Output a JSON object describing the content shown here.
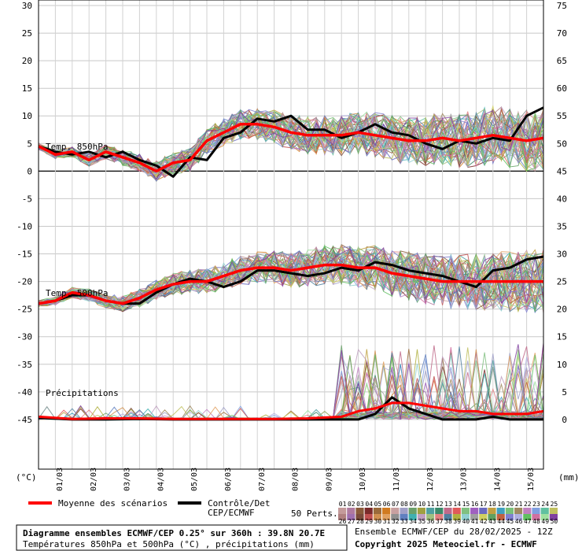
{
  "chart_data": {
    "type": "line",
    "left_axis": {
      "ticks": [
        "30",
        "25",
        "20",
        "15",
        "10",
        "5",
        "0",
        "-5",
        "-10",
        "-15",
        "-20",
        "-25",
        "-30",
        "-35",
        "-40",
        "-45"
      ],
      "values": [
        30,
        25,
        20,
        15,
        10,
        5,
        0,
        -5,
        -10,
        -15,
        -20,
        -25,
        -30,
        -35,
        -40,
        -45
      ],
      "unit": "(°C)",
      "range": [
        -54,
        31
      ]
    },
    "right_axis": {
      "ticks": [
        "75",
        "70",
        "65",
        "60",
        "55",
        "50",
        "45",
        "40",
        "35",
        "30",
        "25",
        "20",
        "15",
        "10",
        "5",
        "0"
      ],
      "values": [
        75,
        70,
        65,
        60,
        55,
        50,
        45,
        40,
        35,
        30,
        25,
        20,
        15,
        10,
        5,
        0
      ],
      "unit": "(mm)"
    },
    "x_dates": [
      "01/03",
      "02/03",
      "03/03",
      "04/03",
      "05/03",
      "06/03",
      "07/03",
      "08/03",
      "09/03",
      "10/03",
      "11/03",
      "12/03",
      "13/03",
      "14/03",
      "15/03"
    ],
    "x_range_days": [
      0,
      15
    ],
    "annotations": [
      "Temp. 850hPa",
      "Temp. 500hPa",
      "Précipitations"
    ],
    "series": [
      {
        "name": "Moyenne des scénarios",
        "color": "#ff0000",
        "t850": [
          [
            0,
            4.5
          ],
          [
            0.5,
            3
          ],
          [
            1,
            3.5
          ],
          [
            1.5,
            2
          ],
          [
            2,
            3.5
          ],
          [
            2.5,
            2.5
          ],
          [
            3,
            1.5
          ],
          [
            3.5,
            0
          ],
          [
            4,
            1.5
          ],
          [
            4.5,
            2
          ],
          [
            5,
            5.5
          ],
          [
            5.5,
            7
          ],
          [
            6,
            8.5
          ],
          [
            6.5,
            8.5
          ],
          [
            7,
            8
          ],
          [
            7.5,
            7
          ],
          [
            8,
            6.5
          ],
          [
            8.5,
            6.5
          ],
          [
            9,
            6.5
          ],
          [
            9.5,
            7
          ],
          [
            10,
            6.5
          ],
          [
            10.5,
            6
          ],
          [
            11,
            5.5
          ],
          [
            11.5,
            5.5
          ],
          [
            12,
            6
          ],
          [
            12.5,
            5.5
          ],
          [
            13,
            6
          ],
          [
            13.5,
            6.5
          ],
          [
            14,
            6
          ],
          [
            14.5,
            5.5
          ],
          [
            15,
            6
          ]
        ],
        "t500": [
          [
            0,
            -24
          ],
          [
            0.5,
            -23.5
          ],
          [
            1,
            -22
          ],
          [
            1.5,
            -22.5
          ],
          [
            2,
            -23.5
          ],
          [
            2.5,
            -24
          ],
          [
            3,
            -23
          ],
          [
            3.5,
            -21.5
          ],
          [
            4,
            -20.5
          ],
          [
            4.5,
            -20
          ],
          [
            5,
            -20
          ],
          [
            5.5,
            -19
          ],
          [
            6,
            -18
          ],
          [
            6.5,
            -17.5
          ],
          [
            7,
            -17.5
          ],
          [
            7.5,
            -18
          ],
          [
            8,
            -17.5
          ],
          [
            8.5,
            -17
          ],
          [
            9,
            -17
          ],
          [
            9.5,
            -17.5
          ],
          [
            10,
            -17.5
          ],
          [
            10.5,
            -18.5
          ],
          [
            11,
            -19
          ],
          [
            11.5,
            -19.5
          ],
          [
            12,
            -20
          ],
          [
            12.5,
            -20
          ],
          [
            13,
            -20
          ],
          [
            13.5,
            -20
          ],
          [
            14,
            -20
          ],
          [
            14.5,
            -20
          ],
          [
            15,
            -20
          ]
        ],
        "precip": [
          [
            0,
            0.5
          ],
          [
            1,
            0.1
          ],
          [
            2,
            0.2
          ],
          [
            3,
            0.2
          ],
          [
            4,
            0.1
          ],
          [
            5,
            0.1
          ],
          [
            6,
            0.1
          ],
          [
            7,
            0.1
          ],
          [
            8,
            0.2
          ],
          [
            9,
            0.5
          ],
          [
            9.5,
            1.5
          ],
          [
            10,
            2
          ],
          [
            10.5,
            3
          ],
          [
            11,
            3
          ],
          [
            11.5,
            2.5
          ],
          [
            12,
            2
          ],
          [
            12.5,
            1.5
          ],
          [
            13,
            1.5
          ],
          [
            13.5,
            1
          ],
          [
            14,
            1
          ],
          [
            14.5,
            1
          ],
          [
            15,
            1.5
          ]
        ]
      },
      {
        "name": "Contrôle/Det CEP/ECMWF",
        "color": "#000000",
        "t850": [
          [
            0,
            4.5
          ],
          [
            0.5,
            3.5
          ],
          [
            1,
            3
          ],
          [
            1.5,
            3.5
          ],
          [
            2,
            2.5
          ],
          [
            2.5,
            3.5
          ],
          [
            3,
            2
          ],
          [
            3.5,
            1
          ],
          [
            4,
            -1
          ],
          [
            4.5,
            2.5
          ],
          [
            5,
            2
          ],
          [
            5.5,
            6
          ],
          [
            6,
            7
          ],
          [
            6.5,
            9.5
          ],
          [
            7,
            9
          ],
          [
            7.5,
            10
          ],
          [
            8,
            7.5
          ],
          [
            8.5,
            7.5
          ],
          [
            9,
            6
          ],
          [
            9.5,
            7
          ],
          [
            10,
            8.5
          ],
          [
            10.5,
            7
          ],
          [
            11,
            6.5
          ],
          [
            11.5,
            5
          ],
          [
            12,
            4
          ],
          [
            12.5,
            5.5
          ],
          [
            13,
            5
          ],
          [
            13.5,
            6
          ],
          [
            14,
            5.5
          ],
          [
            14.5,
            10
          ],
          [
            15,
            11.5
          ]
        ],
        "t500": [
          [
            0,
            -24
          ],
          [
            0.5,
            -23.5
          ],
          [
            1,
            -22.5
          ],
          [
            1.5,
            -22.5
          ],
          [
            2,
            -23.5
          ],
          [
            2.5,
            -24
          ],
          [
            3,
            -24
          ],
          [
            3.5,
            -22
          ],
          [
            4,
            -20.5
          ],
          [
            4.5,
            -19.5
          ],
          [
            5,
            -20
          ],
          [
            5.5,
            -21
          ],
          [
            6,
            -20
          ],
          [
            6.5,
            -18
          ],
          [
            7,
            -18
          ],
          [
            7.5,
            -18.5
          ],
          [
            8,
            -19
          ],
          [
            8.5,
            -18.5
          ],
          [
            9,
            -17.5
          ],
          [
            9.5,
            -18
          ],
          [
            10,
            -16.5
          ],
          [
            10.5,
            -17
          ],
          [
            11,
            -18
          ],
          [
            11.5,
            -18.5
          ],
          [
            12,
            -19
          ],
          [
            12.5,
            -20
          ],
          [
            13,
            -21
          ],
          [
            13.5,
            -18
          ],
          [
            14,
            -17.5
          ],
          [
            14.5,
            -16
          ],
          [
            15,
            -15.5
          ]
        ],
        "precip": [
          [
            0,
            0.3
          ],
          [
            1,
            0
          ],
          [
            2,
            0
          ],
          [
            3,
            0.1
          ],
          [
            4,
            0
          ],
          [
            5,
            0
          ],
          [
            6,
            0
          ],
          [
            7,
            0
          ],
          [
            8,
            0
          ],
          [
            9,
            0
          ],
          [
            9.5,
            0
          ],
          [
            10,
            1
          ],
          [
            10.5,
            4
          ],
          [
            11,
            2
          ],
          [
            11.5,
            1
          ],
          [
            12,
            0
          ],
          [
            12.5,
            0
          ],
          [
            13,
            0
          ],
          [
            13.5,
            0.5
          ],
          [
            14,
            0
          ],
          [
            15,
            0
          ]
        ]
      }
    ],
    "perturbation_count": 50,
    "legend": {
      "mean_label": "Moyenne des scénarios",
      "control_label_1": "Contrôle/Det",
      "control_label_2": "CEP/ECMWF",
      "perts_label": "50 Perts.",
      "perts_top": [
        "01",
        "02",
        "03",
        "04",
        "05",
        "06",
        "07",
        "08",
        "09",
        "10",
        "11",
        "12",
        "13",
        "14",
        "15",
        "16",
        "17",
        "18",
        "19",
        "20",
        "21",
        "22",
        "23",
        "24",
        "25"
      ],
      "perts_bottom": [
        "26",
        "27",
        "28",
        "29",
        "30",
        "31",
        "32",
        "33",
        "34",
        "35",
        "36",
        "37",
        "38",
        "39",
        "40",
        "41",
        "42",
        "43",
        "44",
        "45",
        "46",
        "47",
        "48",
        "49",
        "50"
      ],
      "perts_colors": [
        "#c49a9a",
        "#b07aa0",
        "#8a5a3a",
        "#7a2a2a",
        "#9a6a3a",
        "#d07a20",
        "#c8a0a0",
        "#a0a0c8",
        "#6aa06a",
        "#a0a040",
        "#50a0a0",
        "#3a8a6a",
        "#c06a8a",
        "#e05a5a",
        "#80c080",
        "#a060c0",
        "#6a6ac0",
        "#c0a040",
        "#40a0c0",
        "#7ac07a",
        "#a08a60",
        "#c080c0",
        "#80a0e0",
        "#60c0a0",
        "#c0c060",
        "#b08080",
        "#a070b0",
        "#7a4a3a",
        "#c05050",
        "#d09050",
        "#e0a060",
        "#909090",
        "#6080c0",
        "#40b0b0",
        "#c0a0c0",
        "#a0c080",
        "#e08080",
        "#5080a0",
        "#b0b040",
        "#90d0d0",
        "#a0a0a0",
        "#d0d060",
        "#60a060",
        "#c06040",
        "#8080d0",
        "#b0b0e0",
        "#60c060",
        "#d070a0",
        "#a0e0a0",
        "#8040a0"
      ]
    },
    "footer": {
      "title": "Diagramme ensembles ECMWF/CEP 0.25° sur 360h : 39.8N 20.7E",
      "subtitle": "Températures 850hPa et 500hPa (°C) , précipitations (mm)",
      "run": "Ensemble ECMWF/CEP du 28/02/2025 - 12Z",
      "copyright": "Copyright 2025 Meteociel.fr - ECMWF"
    }
  }
}
